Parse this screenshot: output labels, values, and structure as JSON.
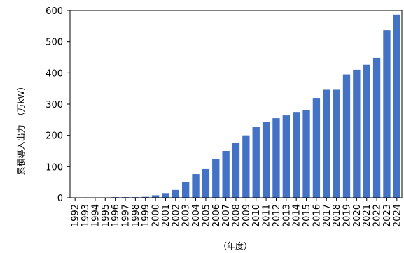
{
  "chart_data": {
    "type": "bar",
    "title": "",
    "xlabel": "（年度）",
    "ylabel": "累積導入出力　（万kW）",
    "ylim": [
      0,
      600
    ],
    "yticks": [
      0,
      100,
      200,
      300,
      400,
      500,
      600
    ],
    "grid": false,
    "legend": "none",
    "bar_color": "#4472c4",
    "categories": [
      "1992",
      "1993",
      "1994",
      "1995",
      "1996",
      "1997",
      "1998",
      "1999",
      "2000",
      "2001",
      "2002",
      "2003",
      "2004",
      "2005",
      "2006",
      "2007",
      "2008",
      "2009",
      "2010",
      "2011",
      "2012",
      "2013",
      "2014",
      "2015",
      "2016",
      "2017",
      "2018",
      "2019",
      "2020",
      "2021",
      "2022",
      "2023",
      "2024"
    ],
    "values": [
      0,
      1,
      1,
      1,
      2,
      2,
      2,
      3,
      8,
      15,
      25,
      50,
      76,
      92,
      125,
      150,
      175,
      200,
      228,
      242,
      255,
      264,
      275,
      280,
      320,
      346,
      346,
      395,
      410,
      426,
      448,
      537,
      587
    ]
  }
}
